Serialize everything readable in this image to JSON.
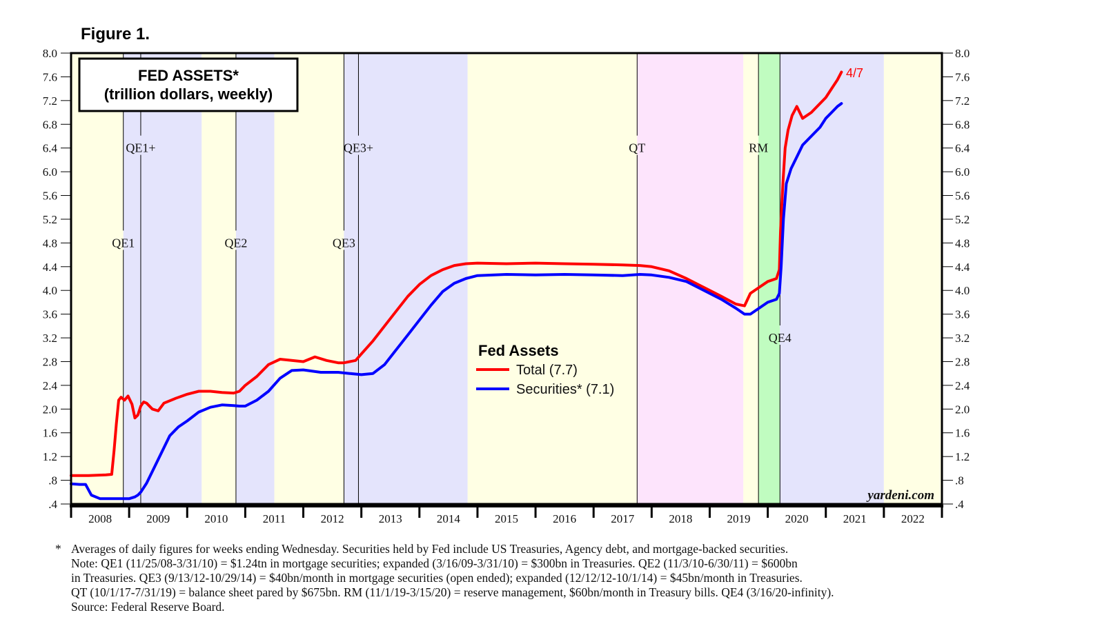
{
  "figure_label": "Figure 1.",
  "chart_data": {
    "type": "line",
    "title": "FED ASSETS*",
    "subtitle": "(trillion dollars, weekly)",
    "xlabel": "",
    "ylabel": "",
    "ylim": [
      0.4,
      8.0
    ],
    "yticks": [
      "8.0",
      "7.6",
      "7.2",
      "6.8",
      "6.4",
      "6.0",
      "5.6",
      "5.2",
      "4.8",
      "4.4",
      "4.0",
      "3.6",
      "3.2",
      "2.8",
      "2.4",
      "2.0",
      "1.6",
      "1.2",
      ".8",
      ".4"
    ],
    "ytick_values": [
      8.0,
      7.6,
      7.2,
      6.8,
      6.4,
      6.0,
      5.6,
      5.2,
      4.8,
      4.4,
      4.0,
      3.6,
      3.2,
      2.8,
      2.4,
      2.0,
      1.6,
      1.2,
      0.8,
      0.4
    ],
    "xlim": [
      2008.0,
      2023.0
    ],
    "x_categories": [
      "2008",
      "2009",
      "2010",
      "2011",
      "2012",
      "2013",
      "2014",
      "2015",
      "2016",
      "2017",
      "2018",
      "2019",
      "2020",
      "2021",
      "2022"
    ],
    "grid": false,
    "legend": {
      "title": "Fed Assets",
      "placement": "center",
      "entries": [
        {
          "label": "Total (7.7)",
          "color": "#ff0000"
        },
        {
          "label": "Securities* (7.1)",
          "color": "#0000ff"
        }
      ]
    },
    "end_annotation": {
      "text": "4/7",
      "color": "#ff0000"
    },
    "watermark": "yardeni.com",
    "bands": [
      {
        "from": 2008.0,
        "to": 2008.9,
        "color": "#ffffe4"
      },
      {
        "from": 2008.9,
        "to": 2010.25,
        "color": "#e4e4fc"
      },
      {
        "from": 2010.25,
        "to": 2010.84,
        "color": "#ffffe4"
      },
      {
        "from": 2010.84,
        "to": 2011.5,
        "color": "#e4e4fc"
      },
      {
        "from": 2011.5,
        "to": 2012.7,
        "color": "#ffffe4"
      },
      {
        "from": 2012.7,
        "to": 2014.83,
        "color": "#e4e4fc"
      },
      {
        "from": 2014.83,
        "to": 2017.75,
        "color": "#ffffe4"
      },
      {
        "from": 2017.75,
        "to": 2019.58,
        "color": "#fde4fc"
      },
      {
        "from": 2019.58,
        "to": 2019.84,
        "color": "#ffffe4"
      },
      {
        "from": 2019.84,
        "to": 2020.21,
        "color": "#c0fcc0"
      },
      {
        "from": 2020.21,
        "to": 2022.0,
        "color": "#e4e4fc"
      },
      {
        "from": 2022.0,
        "to": 2023.0,
        "color": "#ffffe4"
      }
    ],
    "events": [
      {
        "label": "QE1",
        "x": 2008.9,
        "label_value": 4.8
      },
      {
        "label": "QE1+",
        "x": 2009.2,
        "label_value": 6.4
      },
      {
        "label": "QE2",
        "x": 2010.84,
        "label_value": 4.8
      },
      {
        "label": "QE3",
        "x": 2012.7,
        "label_value": 4.8
      },
      {
        "label": "QE3+",
        "x": 2012.95,
        "label_value": 6.4
      },
      {
        "label": "QT",
        "x": 2017.75,
        "label_value": 6.4
      },
      {
        "label": "RM",
        "x": 2019.84,
        "label_value": 6.4
      },
      {
        "label": "QE4",
        "x": 2020.21,
        "label_value": 3.2
      }
    ],
    "series": [
      {
        "name": "Total",
        "color": "#ff0000",
        "x": [
          2008.0,
          2008.3,
          2008.6,
          2008.7,
          2008.74,
          2008.78,
          2008.82,
          2008.86,
          2008.92,
          2008.98,
          2009.05,
          2009.1,
          2009.15,
          2009.2,
          2009.25,
          2009.3,
          2009.4,
          2009.5,
          2009.6,
          2009.8,
          2010.0,
          2010.2,
          2010.4,
          2010.6,
          2010.8,
          2010.9,
          2011.0,
          2011.2,
          2011.4,
          2011.6,
          2011.8,
          2012.0,
          2012.2,
          2012.4,
          2012.6,
          2012.7,
          2012.9,
          2013.0,
          2013.2,
          2013.4,
          2013.6,
          2013.8,
          2014.0,
          2014.2,
          2014.4,
          2014.6,
          2014.8,
          2015.0,
          2015.5,
          2016.0,
          2016.5,
          2017.0,
          2017.5,
          2017.8,
          2018.0,
          2018.3,
          2018.6,
          2018.9,
          2019.2,
          2019.45,
          2019.6,
          2019.7,
          2019.85,
          2020.0,
          2020.15,
          2020.2,
          2020.22,
          2020.26,
          2020.3,
          2020.35,
          2020.42,
          2020.5,
          2020.6,
          2020.75,
          2020.9,
          2021.0,
          2021.1,
          2021.2,
          2021.27
        ],
        "values": [
          0.88,
          0.88,
          0.89,
          0.9,
          1.3,
          1.75,
          2.15,
          2.2,
          2.15,
          2.22,
          2.08,
          1.85,
          1.9,
          2.05,
          2.12,
          2.1,
          2.0,
          1.97,
          2.1,
          2.18,
          2.25,
          2.3,
          2.3,
          2.28,
          2.27,
          2.3,
          2.4,
          2.55,
          2.75,
          2.84,
          2.82,
          2.8,
          2.88,
          2.82,
          2.78,
          2.78,
          2.82,
          2.93,
          3.15,
          3.4,
          3.65,
          3.9,
          4.1,
          4.25,
          4.35,
          4.42,
          4.45,
          4.46,
          4.45,
          4.46,
          4.45,
          4.44,
          4.43,
          4.42,
          4.4,
          4.33,
          4.2,
          4.05,
          3.9,
          3.77,
          3.74,
          3.95,
          4.05,
          4.15,
          4.2,
          4.35,
          5.0,
          5.8,
          6.4,
          6.7,
          6.95,
          7.1,
          6.9,
          7.0,
          7.15,
          7.25,
          7.4,
          7.55,
          7.68
        ]
      },
      {
        "name": "Securities*",
        "color": "#0000ff",
        "x": [
          2008.0,
          2008.15,
          2008.25,
          2008.35,
          2008.5,
          2008.7,
          2008.9,
          2009.0,
          2009.1,
          2009.15,
          2009.2,
          2009.3,
          2009.4,
          2009.5,
          2009.6,
          2009.7,
          2009.85,
          2010.0,
          2010.2,
          2010.4,
          2010.6,
          2010.8,
          2010.9,
          2011.0,
          2011.2,
          2011.4,
          2011.6,
          2011.8,
          2012.0,
          2012.3,
          2012.6,
          2012.8,
          2013.0,
          2013.2,
          2013.4,
          2013.6,
          2013.8,
          2014.0,
          2014.2,
          2014.4,
          2014.6,
          2014.8,
          2015.0,
          2015.5,
          2016.0,
          2016.5,
          2017.0,
          2017.5,
          2017.8,
          2018.0,
          2018.3,
          2018.6,
          2018.9,
          2019.2,
          2019.45,
          2019.6,
          2019.7,
          2019.85,
          2020.0,
          2020.15,
          2020.2,
          2020.23,
          2020.27,
          2020.32,
          2020.4,
          2020.5,
          2020.6,
          2020.75,
          2020.9,
          2021.0,
          2021.1,
          2021.2,
          2021.27
        ],
        "values": [
          0.74,
          0.73,
          0.73,
          0.55,
          0.49,
          0.49,
          0.49,
          0.49,
          0.52,
          0.55,
          0.6,
          0.75,
          0.95,
          1.15,
          1.35,
          1.55,
          1.7,
          1.8,
          1.95,
          2.03,
          2.07,
          2.06,
          2.05,
          2.05,
          2.15,
          2.3,
          2.52,
          2.65,
          2.66,
          2.62,
          2.62,
          2.6,
          2.58,
          2.6,
          2.75,
          3.0,
          3.25,
          3.5,
          3.75,
          3.98,
          4.12,
          4.2,
          4.25,
          4.27,
          4.26,
          4.27,
          4.26,
          4.25,
          4.27,
          4.26,
          4.22,
          4.15,
          4.0,
          3.85,
          3.7,
          3.6,
          3.6,
          3.7,
          3.8,
          3.85,
          3.95,
          4.4,
          5.2,
          5.8,
          6.05,
          6.25,
          6.45,
          6.6,
          6.75,
          6.9,
          7.0,
          7.1,
          7.15
        ]
      }
    ]
  },
  "footnote": {
    "marker": "*",
    "lines": [
      "Averages of daily figures for weeks ending Wednesday. Securities held by Fed include US Treasuries, Agency debt, and mortgage-backed securities.",
      "Note: QE1 (11/25/08-3/31/10) = $1.24tn in mortgage securities; expanded (3/16/09-3/31/10) = $300bn in Treasuries. QE2 (11/3/10-6/30/11) = $600bn",
      "in Treasuries. QE3 (9/13/12-10/29/14) = $40bn/month in mortgage securities (open ended); expanded (12/12/12-10/1/14) = $45bn/month in Treasuries.",
      "QT (10/1/17-7/31/19) = balance sheet pared by $675bn. RM (11/1/19-3/15/20) = reserve management, $60bn/month in Treasury bills. QE4 (3/16/20-infinity).",
      "Source: Federal Reserve Board."
    ]
  }
}
